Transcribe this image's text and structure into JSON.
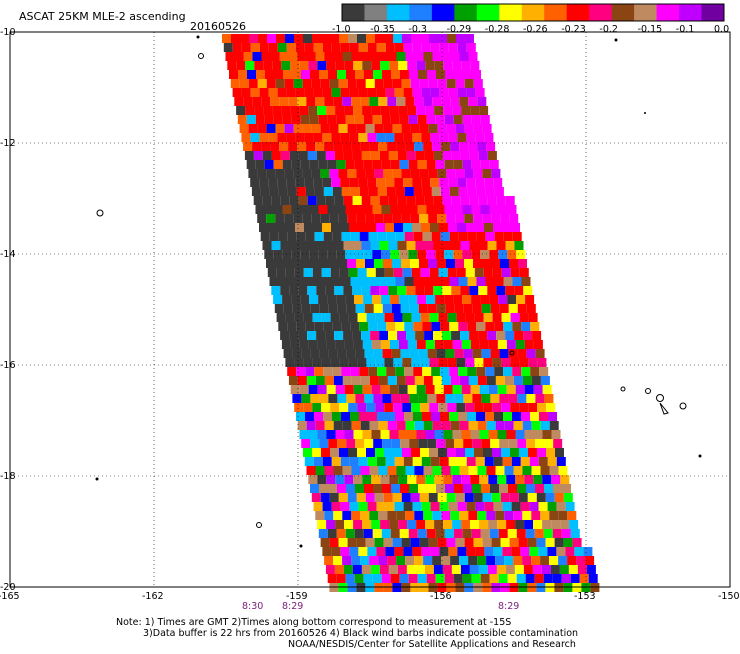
{
  "header": {
    "title": "ASCAT 25KM MLE-2 ascending",
    "date": "20160526"
  },
  "colorbar": {
    "colors": [
      "#3a3a3a",
      "#808080",
      "#00bfff",
      "#1e7fff",
      "#0000ff",
      "#00a000",
      "#00ff00",
      "#ffff00",
      "#ffb000",
      "#ff6000",
      "#ff0000",
      "#ff0080",
      "#8b4513",
      "#c08a60",
      "#ff00ff",
      "#c000ff",
      "#7000a0"
    ],
    "labels": [
      "-1.0",
      "-0.35",
      "-0.3",
      "-0.29",
      "-0.28",
      "-0.26",
      "-0.23",
      "-0.2",
      "-0.15",
      "-0.1",
      "0.0"
    ]
  },
  "map": {
    "lon_ticks": [
      "-165",
      "-162",
      "-159",
      "-156",
      "-153",
      "-150"
    ],
    "lat_ticks": [
      "-10",
      "-12",
      "-14",
      "-16",
      "-18",
      "-20"
    ],
    "lon_range": [
      -165,
      -150
    ],
    "lat_range": [
      -10,
      -20
    ],
    "gridlines": true,
    "swath_colors": [
      "#3a3a3a",
      "#00bfff",
      "#1e7fff",
      "#0000ff",
      "#00a000",
      "#00ff00",
      "#ffff00",
      "#ffb000",
      "#ff6000",
      "#ff0000",
      "#ff0080",
      "#8b4513",
      "#c08a60",
      "#ff00ff",
      "#c000ff"
    ]
  },
  "time_labels": [
    "8:30",
    "8:29",
    "8:29"
  ],
  "notes": {
    "line1": "Note: 1) Times are GMT 2)Times along bottom correspond to measurement at -15S",
    "line2": "3)Data buffer is 22 hrs from 20160526 4) Black wind barbs indicate possible contamination",
    "line3": "NOAA/NESDIS/Center for Satellite Applications and Research"
  }
}
